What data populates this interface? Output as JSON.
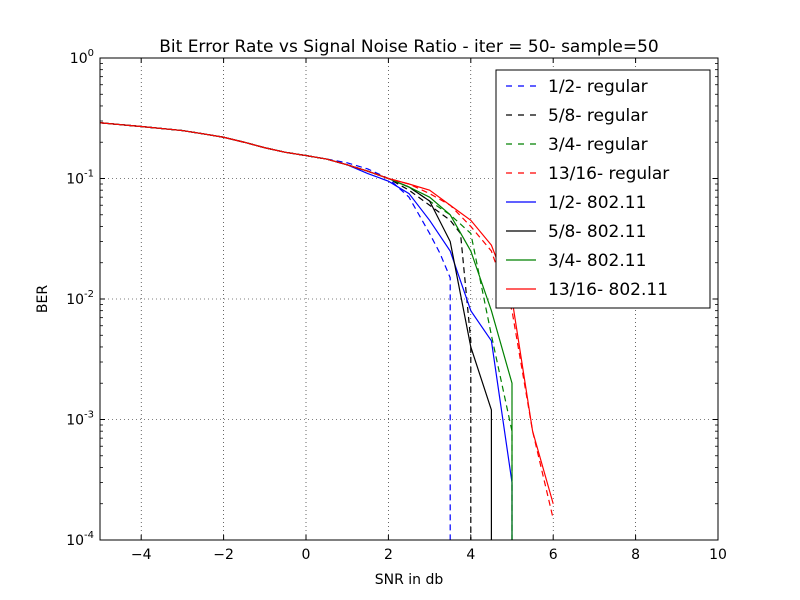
{
  "chart_data": {
    "type": "line",
    "title": "Bit Error Rate vs Signal Noise Ratio - iter = 50- sample=50",
    "xlabel": "SNR in db",
    "ylabel": "BER",
    "xlim": [
      -5,
      10
    ],
    "ylim": [
      0.0001,
      1
    ],
    "yscale": "log",
    "grid": true,
    "legend_position": "top-right",
    "x_ticks": [
      -4,
      -2,
      0,
      2,
      4,
      6,
      8,
      10
    ],
    "x_tick_labels": [
      "−4",
      "−2",
      "0",
      "2",
      "4",
      "6",
      "8",
      "10"
    ],
    "y_ticks": [
      {
        "value": 1,
        "base": "10",
        "exp": "0"
      },
      {
        "value": 0.1,
        "base": "10",
        "exp": "-1"
      },
      {
        "value": 0.01,
        "base": "10",
        "exp": "-2"
      },
      {
        "value": 0.001,
        "base": "10",
        "exp": "-3"
      },
      {
        "value": 0.0001,
        "base": "10",
        "exp": "-4"
      }
    ],
    "series": [
      {
        "name": "1/2- regular",
        "color": "#0000ff",
        "dash": true,
        "x": [
          -5,
          -4,
          -3,
          -2.5,
          -2,
          -1.5,
          -1,
          -0.5,
          0,
          0.5,
          1,
          1.5,
          2,
          2.5,
          3,
          3.25,
          3.5,
          3.5
        ],
        "y": [
          0.29,
          0.27,
          0.25,
          0.235,
          0.22,
          0.2,
          0.18,
          0.165,
          0.155,
          0.145,
          0.135,
          0.12,
          0.1,
          0.07,
          0.035,
          0.024,
          0.015,
          9e-05
        ]
      },
      {
        "name": "5/8- regular",
        "color": "#000000",
        "dash": true,
        "x": [
          -5,
          -4,
          -3,
          -2.5,
          -2,
          -1.5,
          -1,
          -0.5,
          0,
          0.5,
          1,
          1.5,
          2,
          2.5,
          3,
          3.5,
          3.75,
          4,
          4
        ],
        "y": [
          0.29,
          0.27,
          0.25,
          0.235,
          0.22,
          0.2,
          0.18,
          0.165,
          0.155,
          0.145,
          0.13,
          0.115,
          0.1,
          0.08,
          0.06,
          0.045,
          0.035,
          0.0045,
          9e-05
        ]
      },
      {
        "name": "3/4- regular",
        "color": "#008000",
        "dash": true,
        "x": [
          -5,
          -4,
          -3,
          -2.5,
          -2,
          -1.5,
          -1,
          -0.5,
          0,
          0.5,
          1,
          1.5,
          2,
          2.5,
          3,
          3.5,
          4,
          4.5,
          5,
          5
        ],
        "y": [
          0.29,
          0.27,
          0.25,
          0.235,
          0.22,
          0.2,
          0.18,
          0.165,
          0.155,
          0.145,
          0.13,
          0.115,
          0.1,
          0.085,
          0.065,
          0.05,
          0.035,
          0.005,
          0.0008,
          9e-05
        ]
      },
      {
        "name": "13/16- regular",
        "color": "#ff0000",
        "dash": true,
        "x": [
          -5,
          -4,
          -3,
          -2.5,
          -2,
          -1.5,
          -1,
          -0.5,
          0,
          0.5,
          1,
          1.5,
          2,
          2.5,
          3,
          3.5,
          4,
          4.5,
          5,
          5.5,
          6
        ],
        "y": [
          0.29,
          0.27,
          0.25,
          0.235,
          0.22,
          0.2,
          0.18,
          0.165,
          0.155,
          0.145,
          0.13,
          0.115,
          0.1,
          0.09,
          0.075,
          0.06,
          0.04,
          0.025,
          0.008,
          0.0008,
          0.00015
        ]
      },
      {
        "name": "1/2- 802.11",
        "color": "#0000ff",
        "dash": false,
        "x": [
          -5,
          -4,
          -3,
          -2.5,
          -2,
          -1.5,
          -1,
          -0.5,
          0,
          0.5,
          1,
          1.5,
          2,
          2.5,
          3,
          3.5,
          4,
          4.5,
          5,
          5
        ],
        "y": [
          0.29,
          0.27,
          0.25,
          0.235,
          0.22,
          0.2,
          0.18,
          0.165,
          0.155,
          0.145,
          0.13,
          0.11,
          0.095,
          0.075,
          0.045,
          0.025,
          0.008,
          0.0045,
          0.0003,
          9e-05
        ]
      },
      {
        "name": "5/8- 802.11",
        "color": "#000000",
        "dash": false,
        "x": [
          -5,
          -4,
          -3,
          -2.5,
          -2,
          -1.5,
          -1,
          -0.5,
          0,
          0.5,
          1,
          1.5,
          2,
          2.5,
          3,
          3.5,
          4,
          4.5,
          4.5
        ],
        "y": [
          0.29,
          0.27,
          0.25,
          0.235,
          0.22,
          0.2,
          0.18,
          0.165,
          0.155,
          0.145,
          0.13,
          0.115,
          0.1,
          0.085,
          0.065,
          0.03,
          0.004,
          0.0012,
          9e-05
        ]
      },
      {
        "name": "3/4- 802.11",
        "color": "#008000",
        "dash": false,
        "x": [
          -5,
          -4,
          -3,
          -2.5,
          -2,
          -1.5,
          -1,
          -0.5,
          0,
          0.5,
          1,
          1.5,
          2,
          2.5,
          3,
          3.5,
          4,
          4.5,
          5,
          5
        ],
        "y": [
          0.29,
          0.27,
          0.25,
          0.235,
          0.22,
          0.2,
          0.18,
          0.165,
          0.155,
          0.145,
          0.13,
          0.115,
          0.1,
          0.085,
          0.07,
          0.05,
          0.025,
          0.008,
          0.002,
          9e-05
        ]
      },
      {
        "name": "13/16- 802.11",
        "color": "#ff0000",
        "dash": false,
        "x": [
          -5,
          -4,
          -3,
          -2.5,
          -2,
          -1.5,
          -1,
          -0.5,
          0,
          0.5,
          1,
          1.5,
          2,
          2.5,
          3,
          3.5,
          4,
          4.5,
          5,
          5.5,
          6
        ],
        "y": [
          0.29,
          0.27,
          0.25,
          0.235,
          0.22,
          0.2,
          0.18,
          0.165,
          0.155,
          0.145,
          0.13,
          0.115,
          0.1,
          0.09,
          0.08,
          0.06,
          0.045,
          0.028,
          0.01,
          0.0008,
          0.0002
        ]
      }
    ]
  }
}
